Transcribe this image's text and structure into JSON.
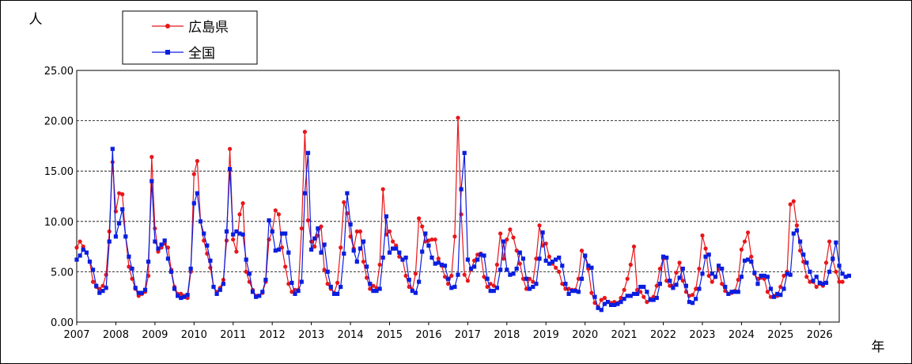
{
  "chart_data": {
    "type": "line",
    "ylabel": "人",
    "xlabel": "年",
    "ylim": [
      0,
      25
    ],
    "yticks": [
      "0.00",
      "5.00",
      "10.00",
      "15.00",
      "20.00",
      "25.00"
    ],
    "ytick_values": [
      0,
      5,
      10,
      15,
      20,
      25
    ],
    "x_start": 2007.0,
    "x_end": 2026.5,
    "xtick_labels": [
      "2007",
      "2008",
      "2009",
      "2010",
      "2011",
      "2012",
      "2013",
      "2014",
      "2015",
      "2016",
      "2017",
      "2018",
      "2019",
      "2020",
      "2021",
      "2022",
      "2023",
      "2024",
      "2025",
      "2026"
    ],
    "grid": "horizontal-dashed",
    "legend": "top-left",
    "series": [
      {
        "name": "広島県",
        "color": "#e8161b",
        "marker": "circle",
        "values": [
          7.4,
          8.0,
          7.5,
          6.9,
          6.0,
          4.0,
          3.5,
          3.3,
          3.6,
          4.7,
          9.0,
          15.9,
          11.0,
          12.8,
          12.7,
          8.5,
          5.5,
          4.3,
          3.3,
          2.6,
          2.8,
          3.0,
          4.6,
          16.4,
          9.3,
          7.0,
          7.4,
          7.8,
          7.4,
          5.2,
          3.5,
          2.8,
          2.8,
          2.6,
          2.4,
          5.0,
          14.7,
          16.0,
          10.0,
          8.1,
          6.8,
          5.4,
          3.5,
          3.0,
          3.4,
          4.2,
          8.1,
          17.2,
          8.2,
          7.0,
          10.7,
          11.8,
          5.0,
          4.0,
          3.2,
          2.6,
          2.6,
          2.9,
          4.0,
          8.2,
          9.0,
          11.1,
          10.7,
          7.4,
          5.5,
          3.8,
          3.0,
          3.2,
          3.2,
          9.3,
          18.9,
          10.1,
          8.0,
          7.5,
          8.6,
          9.5,
          5.2,
          3.8,
          3.3,
          2.9,
          3.9,
          7.4,
          11.9,
          10.8,
          8.5,
          7.3,
          9.0,
          9.0,
          6.0,
          4.4,
          3.3,
          3.6,
          3.4,
          5.7,
          13.2,
          8.7,
          9.0,
          8.0,
          7.6,
          6.5,
          6.2,
          4.6,
          3.5,
          3.2,
          4.8,
          10.3,
          9.5,
          8.0,
          8.1,
          8.2,
          8.2,
          6.3,
          5.6,
          4.5,
          3.8,
          4.6,
          8.5,
          20.3,
          10.7,
          4.7,
          4.1,
          5.2,
          6.1,
          6.7,
          6.8,
          4.5,
          3.5,
          3.8,
          3.6,
          5.7,
          8.8,
          6.3,
          8.2,
          9.2,
          8.4,
          7.1,
          5.8,
          4.3,
          3.3,
          4.3,
          4.0,
          6.3,
          9.6,
          7.6,
          7.8,
          6.5,
          5.8,
          5.4,
          5.0,
          3.8,
          3.3,
          3.3,
          3.2,
          3.2,
          4.3,
          7.1,
          6.5,
          5.3,
          2.9,
          1.9,
          1.5,
          2.2,
          2.4,
          2.0,
          1.9,
          2.0,
          1.9,
          2.4,
          3.2,
          4.3,
          5.7,
          7.5,
          3.2,
          3.0,
          2.5,
          2.0,
          2.3,
          2.5,
          3.6,
          5.3,
          6.3,
          4.1,
          3.6,
          3.6,
          4.9,
          5.9,
          4.1,
          3.0,
          2.6,
          2.7,
          3.3,
          5.3,
          8.6,
          7.3,
          4.6,
          4.0,
          4.5,
          5.3,
          3.8,
          3.1,
          2.8,
          2.9,
          3.1,
          4.2,
          7.2,
          8.0,
          8.9,
          6.5,
          4.8,
          4.3,
          4.4,
          4.3,
          3.0,
          2.5,
          2.6,
          2.6,
          3.5,
          4.6,
          5.0,
          11.7,
          12.0,
          9.6,
          7.1,
          6.0,
          4.5,
          4.0,
          4.0,
          3.5,
          3.8,
          3.6,
          5.9,
          8.0,
          6.2,
          5.0,
          4.0,
          4.0
        ]
      },
      {
        "name": "全国",
        "color": "#0a1ee0",
        "marker": "square",
        "values": [
          6.2,
          6.6,
          7.2,
          6.9,
          6.0,
          5.2,
          3.6,
          2.9,
          3.1,
          3.4,
          8.0,
          17.2,
          8.5,
          9.8,
          11.2,
          8.5,
          6.5,
          5.3,
          3.4,
          2.9,
          2.9,
          3.2,
          6.0,
          14.0,
          8.0,
          7.3,
          7.7,
          8.1,
          6.3,
          5.0,
          3.3,
          2.6,
          2.4,
          2.5,
          2.7,
          5.3,
          11.8,
          12.8,
          10.0,
          8.8,
          7.6,
          6.1,
          3.5,
          2.8,
          3.2,
          3.8,
          9.0,
          15.2,
          8.7,
          9.0,
          8.8,
          8.7,
          6.2,
          4.8,
          3.0,
          2.5,
          2.6,
          3.0,
          4.2,
          10.1,
          9.0,
          7.1,
          7.2,
          8.8,
          8.8,
          6.9,
          3.9,
          2.8,
          3.1,
          4.0,
          12.8,
          16.8,
          7.2,
          8.3,
          9.3,
          6.9,
          7.7,
          5.0,
          3.5,
          2.8,
          2.8,
          3.5,
          6.8,
          12.8,
          9.7,
          7.1,
          6.0,
          7.3,
          8.0,
          5.5,
          3.8,
          3.1,
          3.1,
          3.3,
          6.4,
          10.5,
          6.9,
          7.3,
          7.3,
          6.9,
          6.2,
          6.4,
          4.2,
          3.1,
          2.9,
          4.0,
          7.0,
          8.8,
          7.6,
          6.4,
          5.8,
          5.9,
          5.7,
          5.6,
          4.3,
          3.4,
          3.5,
          4.7,
          13.2,
          16.8,
          6.2,
          5.3,
          5.5,
          6.2,
          6.7,
          6.6,
          4.3,
          3.1,
          3.1,
          3.4,
          5.2,
          8.0,
          5.2,
          4.7,
          4.8,
          5.3,
          6.9,
          6.3,
          4.3,
          3.3,
          3.5,
          3.8,
          6.3,
          8.9,
          6.1,
          5.8,
          6.0,
          6.2,
          6.4,
          5.6,
          3.8,
          2.8,
          3.1,
          3.1,
          3.0,
          4.3,
          6.6,
          5.6,
          5.4,
          2.5,
          1.4,
          1.2,
          1.8,
          2.0,
          1.7,
          1.7,
          1.8,
          2.0,
          2.3,
          2.6,
          2.6,
          2.8,
          2.8,
          3.5,
          3.5,
          3.0,
          2.2,
          2.2,
          2.4,
          3.8,
          6.5,
          6.4,
          4.1,
          3.4,
          3.7,
          4.4,
          5.3,
          3.6,
          2.0,
          1.9,
          2.3,
          3.3,
          4.8,
          6.5,
          6.7,
          4.8,
          4.5,
          5.6,
          5.3,
          3.5,
          2.8,
          3.0,
          3.0,
          3.0,
          4.5,
          6.1,
          6.2,
          6.0,
          4.9,
          3.8,
          4.6,
          4.6,
          4.5,
          3.3,
          2.5,
          2.8,
          2.7,
          3.3,
          4.8,
          4.7,
          8.8,
          9.1,
          8.0,
          6.7,
          5.9,
          5.0,
          4.1,
          4.5,
          3.9,
          3.8,
          3.9,
          5.0,
          6.3,
          7.9,
          5.6,
          4.8,
          4.5,
          4.6
        ]
      }
    ]
  }
}
